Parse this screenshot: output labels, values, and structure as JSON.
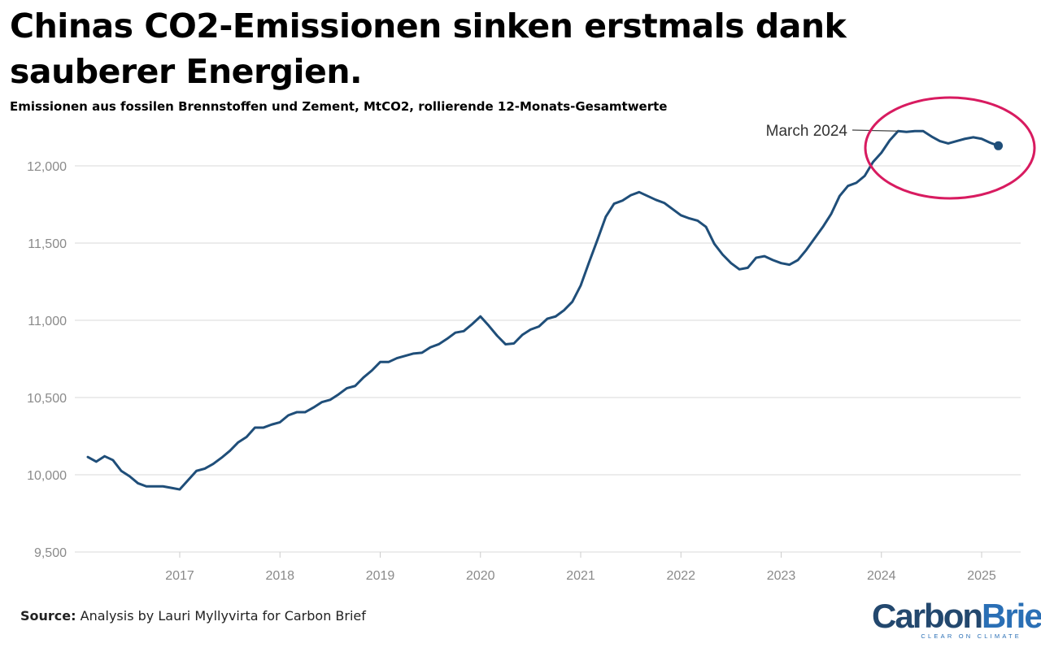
{
  "title": "Chinas CO2-Emissionen sinken erstmals dank sauberer Energien.",
  "subtitle": "Emissionen aus fossilen Brennstoffen und Zement, MtCO2, rollierende 12-Monats-Gesamtwerte",
  "source": {
    "label": "Source:",
    "text": "Analysis by Lauri Myllyvirta for Carbon Brief"
  },
  "logo": {
    "word1": "Carbon",
    "word2": "Brief",
    "tagline": "CLEAR ON CLIMATE"
  },
  "colors": {
    "line": "#1f4e79",
    "highlight_circle": "#d81b60",
    "grid": "#e6e6e6",
    "tick_text": "#8a8a8a"
  },
  "chart_data": {
    "type": "line",
    "title": "Chinas CO2-Emissionen sinken erstmals dank sauberer Energien.",
    "subtitle": "Emissionen aus fossilen Brennstoffen und Zement, MtCO2, rollierende 12-Monats-Gesamtwerte",
    "xlabel": "",
    "ylabel": "",
    "ylim": [
      9500,
      12000
    ],
    "yticks": [
      9500,
      10000,
      10500,
      11000,
      11500,
      12000
    ],
    "ytick_labels": [
      "9,500",
      "10,000",
      "10,500",
      "11,000",
      "11,500",
      "12,000"
    ],
    "xlim": [
      "2016-01",
      "2025-04"
    ],
    "xticks": [
      "2017-01",
      "2018-01",
      "2019-01",
      "2020-01",
      "2021-01",
      "2022-01",
      "2023-01",
      "2024-01",
      "2025-01"
    ],
    "xtick_labels": [
      "2017",
      "2018",
      "2019",
      "2020",
      "2021",
      "2022",
      "2023",
      "2024",
      "2025"
    ],
    "grid": "horizontal",
    "legend": "none",
    "annotation": {
      "label": "March 2024",
      "x": "2024-03"
    },
    "highlight": "circle around 2024-2025 peak",
    "end_marker": "2025-03",
    "series": [
      {
        "x": [
          "2016-02",
          "2016-03",
          "2016-04",
          "2016-05",
          "2016-06",
          "2016-07",
          "2016-08",
          "2016-09",
          "2016-10",
          "2016-11",
          "2016-12",
          "2017-01",
          "2017-02",
          "2017-03",
          "2017-04",
          "2017-05",
          "2017-06",
          "2017-07",
          "2017-08",
          "2017-09",
          "2017-10",
          "2017-11",
          "2017-12",
          "2018-01",
          "2018-02",
          "2018-03",
          "2018-04",
          "2018-05",
          "2018-06",
          "2018-07",
          "2018-08",
          "2018-09",
          "2018-10",
          "2018-11",
          "2018-12",
          "2019-01",
          "2019-02",
          "2019-03",
          "2019-04",
          "2019-05",
          "2019-06",
          "2019-07",
          "2019-08",
          "2019-09",
          "2019-10",
          "2019-11",
          "2019-12",
          "2020-01",
          "2020-02",
          "2020-03",
          "2020-04",
          "2020-05",
          "2020-06",
          "2020-07",
          "2020-08",
          "2020-09",
          "2020-10",
          "2020-11",
          "2020-12",
          "2021-01",
          "2021-02",
          "2021-03",
          "2021-04",
          "2021-05",
          "2021-06",
          "2021-07",
          "2021-08",
          "2021-09",
          "2021-10",
          "2021-11",
          "2021-12",
          "2022-01",
          "2022-02",
          "2022-03",
          "2022-04",
          "2022-05",
          "2022-06",
          "2022-07",
          "2022-08",
          "2022-09",
          "2022-10",
          "2022-11",
          "2022-12",
          "2023-01",
          "2023-02",
          "2023-03",
          "2023-04",
          "2023-05",
          "2023-06",
          "2023-07",
          "2023-08",
          "2023-09",
          "2023-10",
          "2023-11",
          "2023-12",
          "2024-01",
          "2024-02",
          "2024-03",
          "2024-04",
          "2024-05",
          "2024-06",
          "2024-07",
          "2024-08",
          "2024-09",
          "2024-10",
          "2024-11",
          "2024-12",
          "2025-01",
          "2025-02",
          "2025-03"
        ],
        "values": [
          10115,
          10085,
          10120,
          10095,
          10025,
          9990,
          9945,
          9925,
          9925,
          9925,
          9915,
          9905,
          9965,
          10025,
          10040,
          10070,
          10110,
          10155,
          10210,
          10245,
          10305,
          10305,
          10325,
          10340,
          10385,
          10405,
          10405,
          10435,
          10470,
          10485,
          10520,
          10560,
          10575,
          10630,
          10675,
          10730,
          10730,
          10755,
          10770,
          10785,
          10790,
          10825,
          10845,
          10880,
          10920,
          10930,
          10975,
          11025,
          10965,
          10900,
          10845,
          10850,
          10905,
          10940,
          10960,
          11010,
          11025,
          11065,
          11120,
          11225,
          11375,
          11520,
          11670,
          11755,
          11775,
          11810,
          11830,
          11805,
          11780,
          11760,
          11720,
          11680,
          11660,
          11645,
          11605,
          11495,
          11425,
          11370,
          11330,
          11340,
          11405,
          11415,
          11390,
          11370,
          11360,
          11390,
          11455,
          11530,
          11605,
          11690,
          11805,
          11870,
          11890,
          11935,
          12025,
          12085,
          12165,
          12225,
          12220,
          12225,
          12225,
          12190,
          12160,
          12145,
          12160,
          12175,
          12185,
          12175,
          12150,
          12130
        ]
      }
    ]
  }
}
